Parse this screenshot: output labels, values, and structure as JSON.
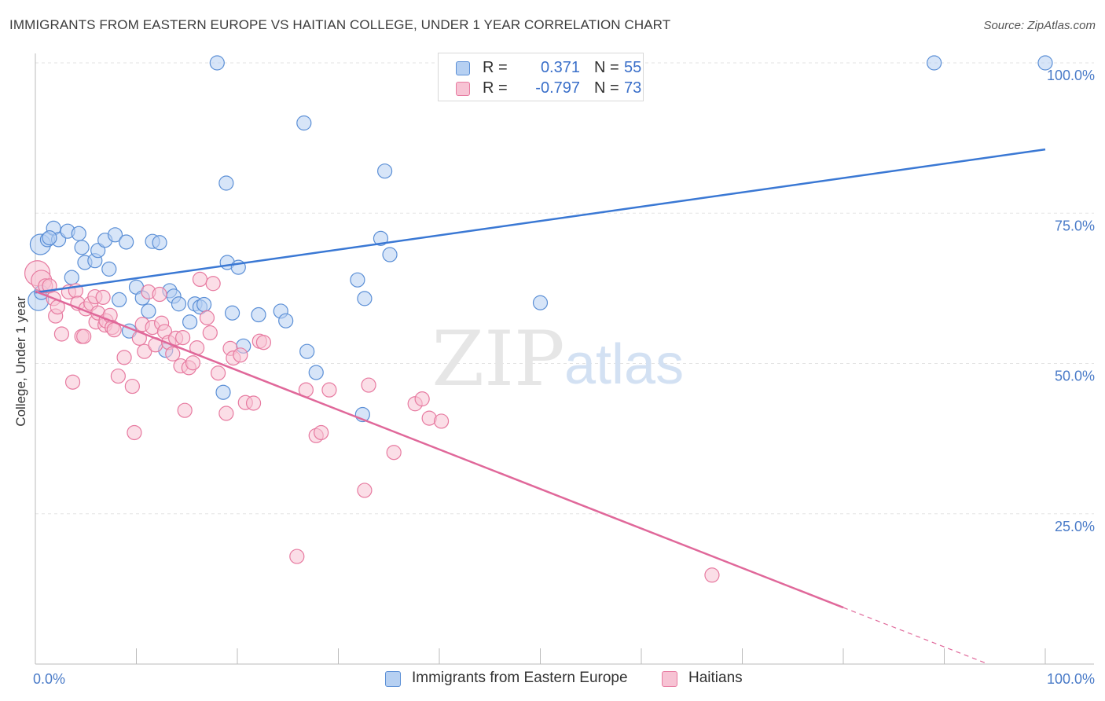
{
  "title": "IMMIGRANTS FROM EASTERN EUROPE VS HAITIAN COLLEGE, UNDER 1 YEAR CORRELATION CHART",
  "source": "Source: ZipAtlas.com",
  "watermark": {
    "zip": "ZIP",
    "atlas": "atlas"
  },
  "colors": {
    "blue": "#5b8fd6",
    "blue_fill": "#b6d0f2",
    "blue_line": "#3a78d4",
    "pink": "#e77aa0",
    "pink_fill": "#f7c3d4",
    "pink_line": "#e0689a",
    "tick_text": "#4a7bc8",
    "grid": "#e3e3e3"
  },
  "legend": {
    "series": [
      {
        "r_label": "R =",
        "r_value": "0.371",
        "n_label": "N =",
        "n_value": "55"
      },
      {
        "r_label": "R =",
        "r_value": "-0.797",
        "n_label": "N =",
        "n_value": "73"
      }
    ]
  },
  "chart_data": {
    "type": "scatter",
    "title": "IMMIGRANTS FROM EASTERN EUROPE VS HAITIAN COLLEGE, UNDER 1 YEAR CORRELATION CHART",
    "xlabel": "",
    "ylabel": "College, Under 1 year",
    "xlim": [
      0,
      100
    ],
    "ylim": [
      0,
      100
    ],
    "x_ticks": [
      "0.0%",
      "100.0%"
    ],
    "y_ticks": [
      {
        "value": 25,
        "label": "25.0%"
      },
      {
        "value": 50,
        "label": "50.0%"
      },
      {
        "value": 75,
        "label": "75.0%"
      },
      {
        "value": 100,
        "label": "100.0%"
      }
    ],
    "grid": true,
    "legend": "bottom",
    "series": [
      {
        "name": "Immigrants from Eastern Europe",
        "color": "blue",
        "r": 0.371,
        "n": 55,
        "trend": {
          "x0": 0,
          "y0": 61.8,
          "x1": 100,
          "y1": 85.6
        },
        "points": [
          [
            0.3,
            60.5
          ],
          [
            0.5,
            69.8
          ],
          [
            1.2,
            70.6
          ],
          [
            1.8,
            72.5
          ],
          [
            2.3,
            70.6
          ],
          [
            3.2,
            72.0
          ],
          [
            3.6,
            64.3
          ],
          [
            4.3,
            71.6
          ],
          [
            4.6,
            69.3
          ],
          [
            4.9,
            66.8
          ],
          [
            5.9,
            67.1
          ],
          [
            6.2,
            68.8
          ],
          [
            6.9,
            70.5
          ],
          [
            7.3,
            65.7
          ],
          [
            7.9,
            71.4
          ],
          [
            8.3,
            60.6
          ],
          [
            9.0,
            70.2
          ],
          [
            9.3,
            55.4
          ],
          [
            10.0,
            62.7
          ],
          [
            10.6,
            60.9
          ],
          [
            11.2,
            58.7
          ],
          [
            11.6,
            70.3
          ],
          [
            12.3,
            70.1
          ],
          [
            12.9,
            52.2
          ],
          [
            13.3,
            62.1
          ],
          [
            13.7,
            61.2
          ],
          [
            14.2,
            59.9
          ],
          [
            15.3,
            56.9
          ],
          [
            15.8,
            59.9
          ],
          [
            16.3,
            59.4
          ],
          [
            16.7,
            59.8
          ],
          [
            18.0,
            100.0
          ],
          [
            18.6,
            45.2
          ],
          [
            18.9,
            80.0
          ],
          [
            19.0,
            66.8
          ],
          [
            19.5,
            58.4
          ],
          [
            20.1,
            66.0
          ],
          [
            20.6,
            52.9
          ],
          [
            22.1,
            58.1
          ],
          [
            24.3,
            58.7
          ],
          [
            24.8,
            57.1
          ],
          [
            26.6,
            90.0
          ],
          [
            26.9,
            52.0
          ],
          [
            27.8,
            48.5
          ],
          [
            31.9,
            63.9
          ],
          [
            32.4,
            41.5
          ],
          [
            32.6,
            60.8
          ],
          [
            34.2,
            70.8
          ],
          [
            34.6,
            82.0
          ],
          [
            35.1,
            68.1
          ],
          [
            50.0,
            60.1
          ],
          [
            89.0,
            100.0
          ],
          [
            100.0,
            100.0
          ],
          [
            0.6,
            61.8
          ],
          [
            1.4,
            70.9
          ]
        ]
      },
      {
        "name": "Haitians",
        "color": "pink",
        "r": -0.797,
        "n": 73,
        "trend": {
          "x0": 0,
          "y0": 62.0,
          "x1": 80,
          "y1": 9.4,
          "dash_to_x": 100,
          "dash_to_y": -3.7
        },
        "points": [
          [
            0.2,
            65.0
          ],
          [
            0.6,
            63.8
          ],
          [
            1.0,
            62.9
          ],
          [
            1.4,
            62.9
          ],
          [
            1.8,
            60.8
          ],
          [
            2.0,
            57.9
          ],
          [
            2.2,
            59.4
          ],
          [
            2.6,
            54.9
          ],
          [
            3.3,
            61.9
          ],
          [
            3.7,
            46.9
          ],
          [
            4.0,
            62.1
          ],
          [
            4.2,
            60.0
          ],
          [
            4.6,
            54.5
          ],
          [
            4.8,
            54.5
          ],
          [
            5.0,
            59.1
          ],
          [
            5.5,
            60.0
          ],
          [
            5.9,
            61.1
          ],
          [
            6.0,
            56.9
          ],
          [
            6.2,
            58.4
          ],
          [
            6.7,
            61.0
          ],
          [
            6.9,
            56.4
          ],
          [
            7.0,
            57.1
          ],
          [
            7.4,
            58.0
          ],
          [
            7.6,
            56.0
          ],
          [
            7.8,
            55.6
          ],
          [
            8.2,
            47.9
          ],
          [
            8.8,
            51.0
          ],
          [
            9.6,
            46.2
          ],
          [
            9.8,
            38.5
          ],
          [
            10.3,
            54.2
          ],
          [
            10.6,
            56.5
          ],
          [
            10.8,
            52.0
          ],
          [
            11.2,
            61.9
          ],
          [
            11.6,
            56.0
          ],
          [
            11.9,
            53.1
          ],
          [
            12.3,
            61.5
          ],
          [
            12.5,
            56.7
          ],
          [
            12.8,
            55.3
          ],
          [
            13.2,
            53.5
          ],
          [
            13.6,
            51.6
          ],
          [
            13.9,
            54.2
          ],
          [
            14.4,
            49.6
          ],
          [
            14.6,
            54.3
          ],
          [
            14.8,
            42.2
          ],
          [
            15.2,
            49.3
          ],
          [
            15.6,
            50.1
          ],
          [
            16.0,
            52.6
          ],
          [
            16.3,
            64.0
          ],
          [
            17.0,
            57.6
          ],
          [
            17.3,
            55.1
          ],
          [
            17.6,
            63.3
          ],
          [
            18.1,
            48.4
          ],
          [
            18.9,
            41.7
          ],
          [
            19.3,
            52.5
          ],
          [
            19.6,
            50.9
          ],
          [
            20.3,
            51.4
          ],
          [
            20.8,
            43.5
          ],
          [
            21.6,
            43.4
          ],
          [
            22.2,
            53.7
          ],
          [
            22.6,
            53.5
          ],
          [
            25.9,
            17.9
          ],
          [
            26.8,
            45.6
          ],
          [
            27.8,
            38.0
          ],
          [
            28.3,
            38.5
          ],
          [
            29.1,
            45.6
          ],
          [
            32.6,
            28.9
          ],
          [
            33.0,
            46.4
          ],
          [
            35.5,
            35.2
          ],
          [
            37.6,
            43.3
          ],
          [
            38.3,
            44.1
          ],
          [
            39.0,
            40.9
          ],
          [
            40.2,
            40.4
          ],
          [
            67.0,
            14.8
          ]
        ]
      }
    ]
  }
}
